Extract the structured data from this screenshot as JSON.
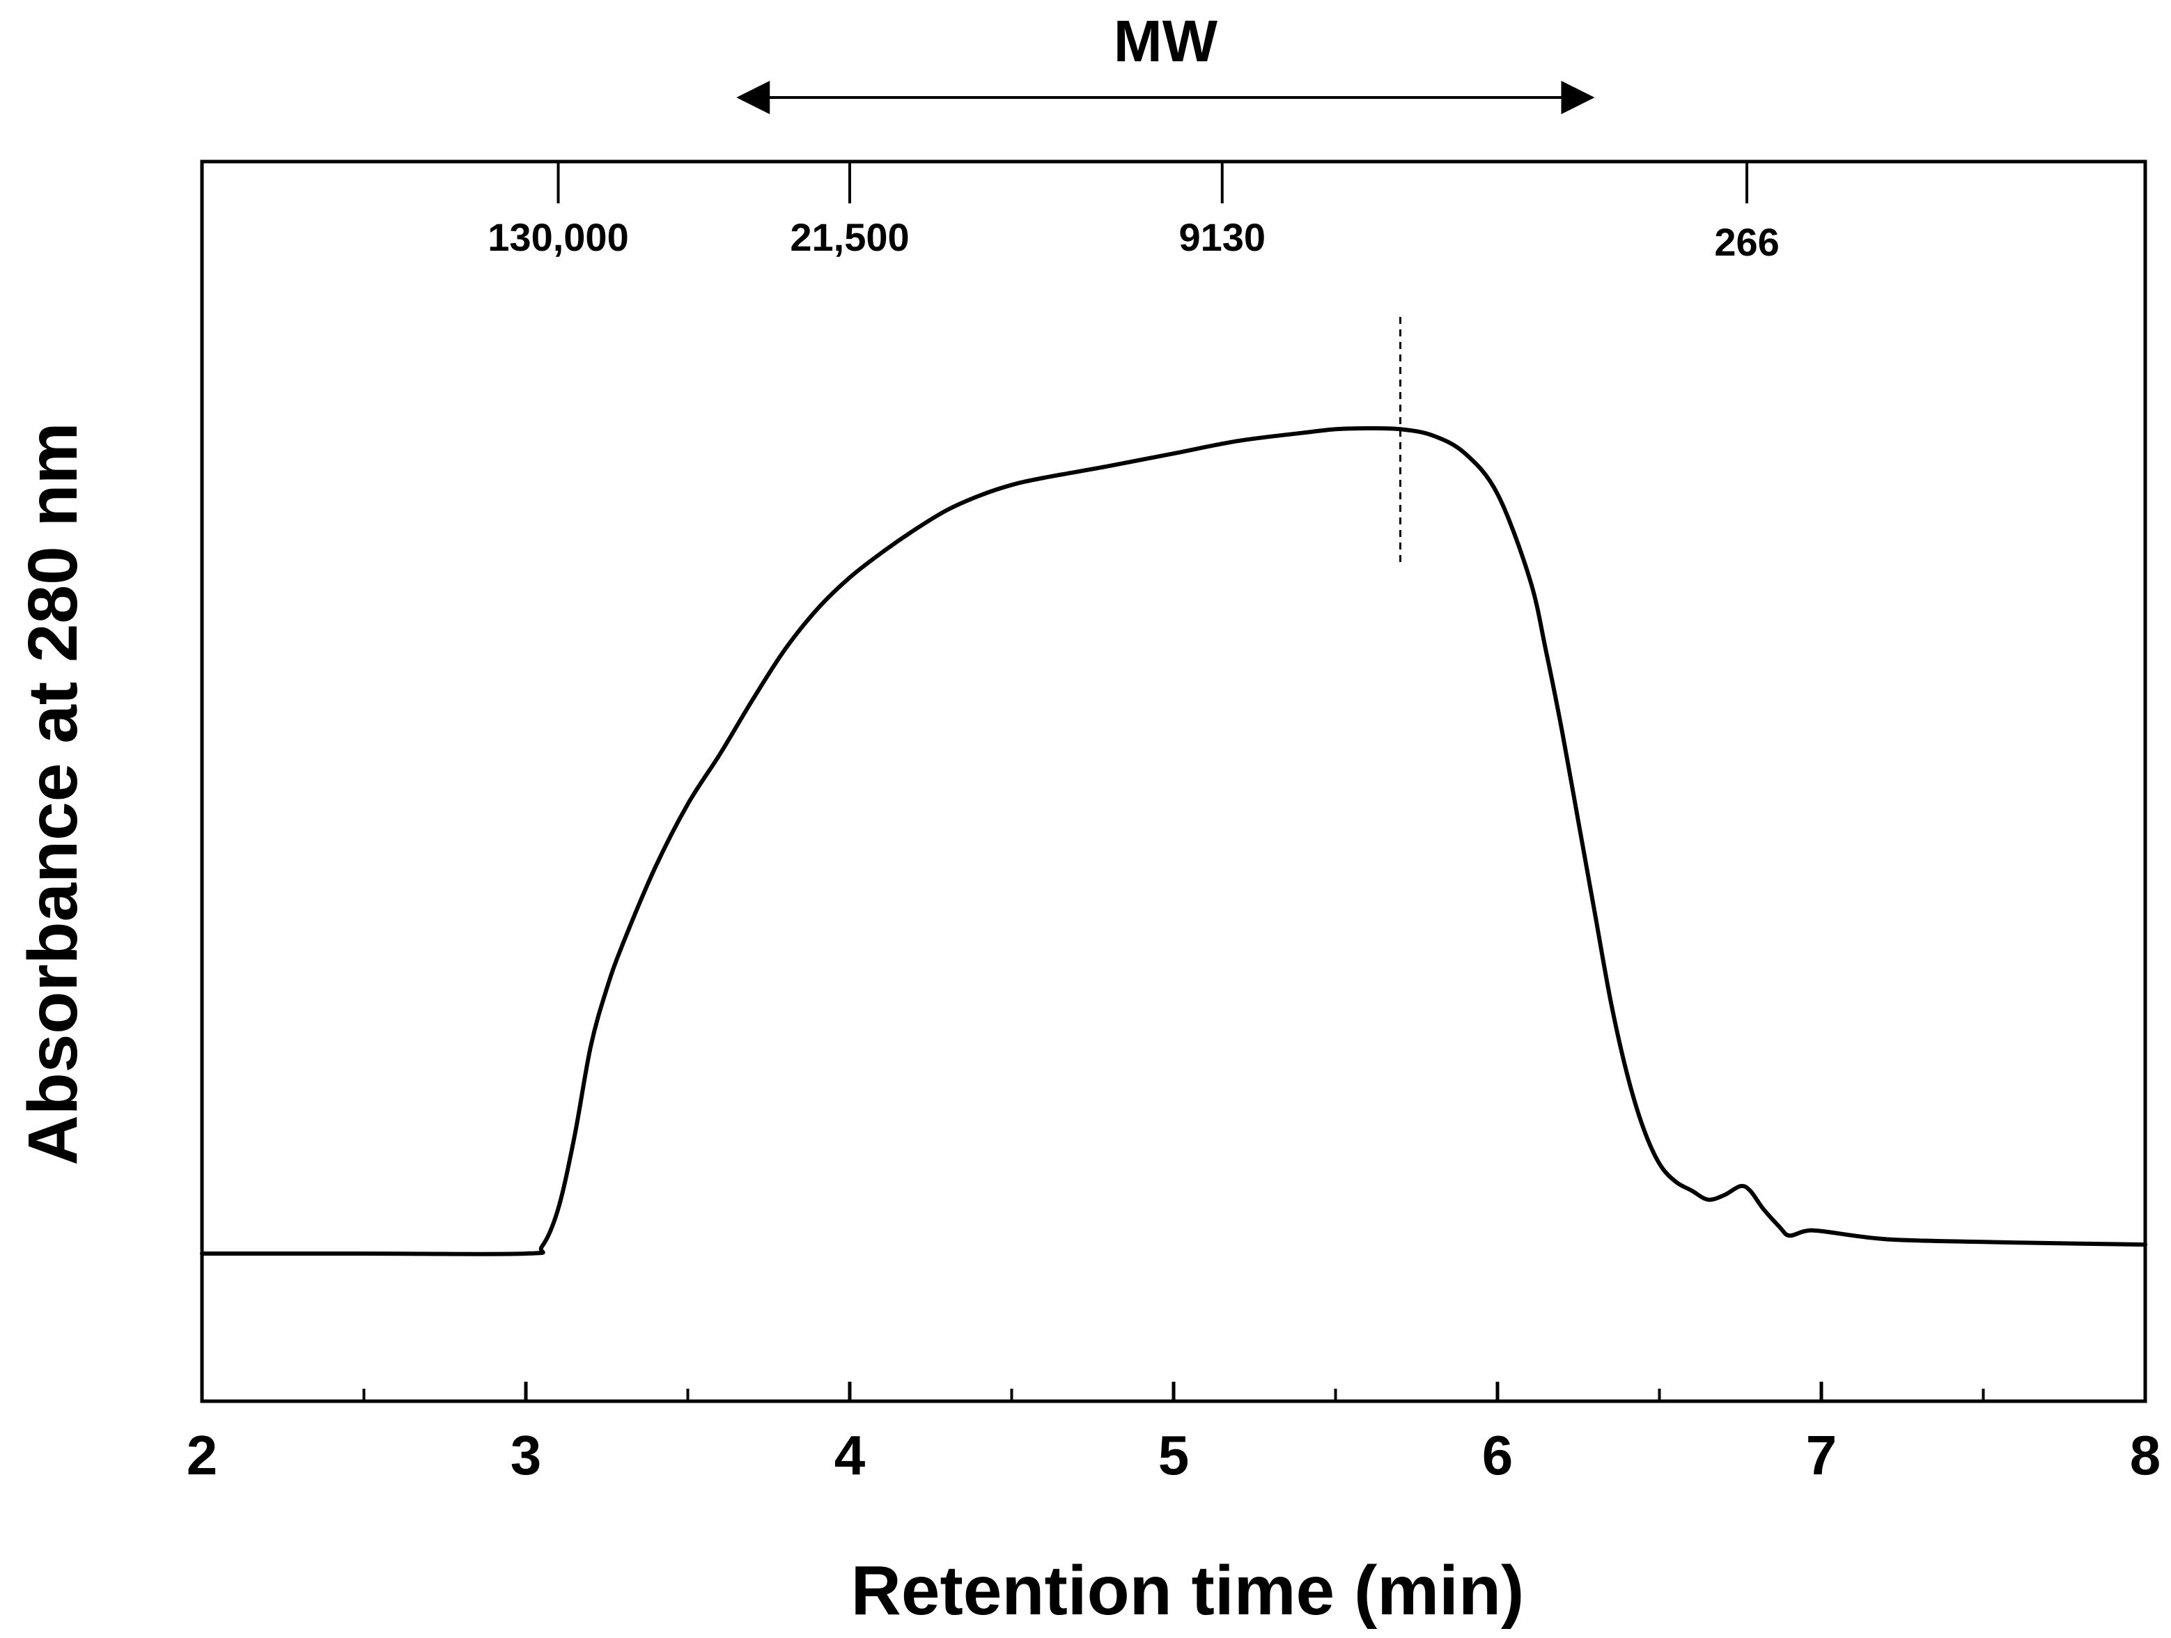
{
  "chart_data": {
    "type": "line",
    "title": "",
    "xlabel": "Retention time (min)",
    "ylabel": "Absorbance at 280 nm",
    "xlim": [
      2,
      8
    ],
    "ylim": [
      0,
      1
    ],
    "x_ticks": [
      "2",
      "3",
      "4",
      "5",
      "6",
      "7",
      "8"
    ],
    "x_minor_ticks": [
      2.5,
      3.5,
      4.5,
      5.5,
      6.5,
      7.5
    ],
    "grid": false,
    "mw_annotation": {
      "title": "MW",
      "arrow_from": 3.65,
      "arrow_to": 6.3,
      "markers": [
        {
          "label": "130,000",
          "x": 3.1
        },
        {
          "label": "21,500",
          "x": 4.0
        },
        {
          "label": "9130",
          "x": 5.15
        },
        {
          "label": "266",
          "x": 6.77
        }
      ]
    },
    "reference_line_x": 5.7,
    "series": [
      {
        "name": "Absorbance",
        "x": [
          2.0,
          2.5,
          3.0,
          3.05,
          3.1,
          3.15,
          3.2,
          3.25,
          3.3,
          3.4,
          3.5,
          3.6,
          3.7,
          3.8,
          3.9,
          4.0,
          4.1,
          4.2,
          4.3,
          4.4,
          4.5,
          4.6,
          4.8,
          5.0,
          5.2,
          5.4,
          5.5,
          5.6,
          5.7,
          5.8,
          5.9,
          6.0,
          6.1,
          6.15,
          6.2,
          6.25,
          6.3,
          6.35,
          6.4,
          6.45,
          6.5,
          6.55,
          6.6,
          6.65,
          6.7,
          6.75,
          6.78,
          6.82,
          6.87,
          6.9,
          6.95,
          7.0,
          7.2,
          7.5,
          7.8,
          8.0
        ],
        "y": [
          0.12,
          0.12,
          0.12,
          0.128,
          0.17,
          0.25,
          0.35,
          0.415,
          0.465,
          0.55,
          0.62,
          0.676,
          0.736,
          0.792,
          0.837,
          0.872,
          0.9,
          0.925,
          0.947,
          0.963,
          0.975,
          0.983,
          0.996,
          1.01,
          1.024,
          1.033,
          1.037,
          1.038,
          1.037,
          1.03,
          1.01,
          0.965,
          0.87,
          0.79,
          0.7,
          0.6,
          0.5,
          0.4,
          0.32,
          0.26,
          0.22,
          0.2,
          0.19,
          0.18,
          0.185,
          0.195,
          0.19,
          0.17,
          0.15,
          0.14,
          0.145,
          0.145,
          0.136,
          0.133,
          0.131,
          0.13
        ]
      }
    ]
  }
}
